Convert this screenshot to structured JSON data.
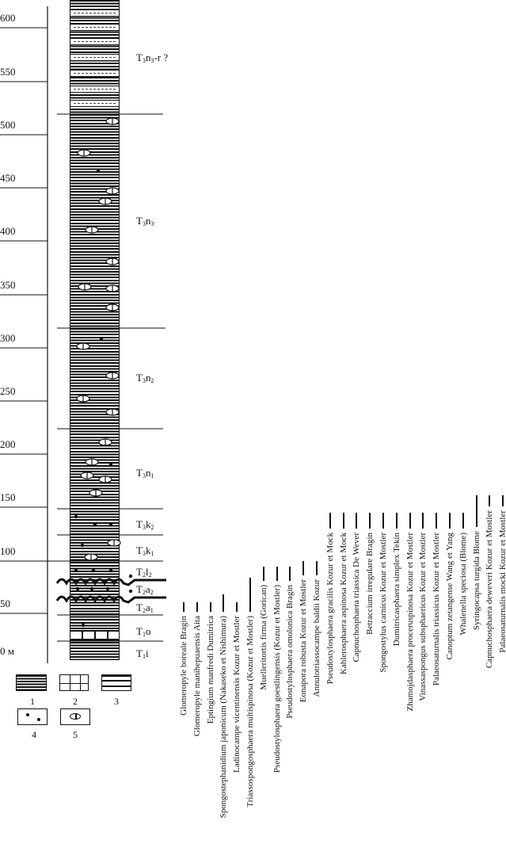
{
  "scale": {
    "ticks": [
      "600",
      "550",
      "500",
      "450",
      "400",
      "350",
      "300",
      "250",
      "200",
      "150",
      "100",
      "50",
      "0 м"
    ]
  },
  "units": [
    {
      "parts": [
        [
          "T",
          ""
        ],
        [
          "3",
          "sub"
        ],
        [
          "n",
          ""
        ],
        [
          "3",
          "sub"
        ],
        [
          "-r ?",
          ""
        ]
      ]
    },
    {
      "parts": [
        [
          "T",
          ""
        ],
        [
          "3",
          "sub"
        ],
        [
          "n",
          ""
        ],
        [
          "3",
          "sub"
        ]
      ]
    },
    {
      "parts": [
        [
          "T",
          ""
        ],
        [
          "3",
          "sub"
        ],
        [
          "n",
          ""
        ],
        [
          "2",
          "sub"
        ]
      ]
    },
    {
      "parts": [
        [
          "T",
          ""
        ],
        [
          "3",
          "sub"
        ],
        [
          "n",
          ""
        ],
        [
          "1",
          "sub"
        ]
      ]
    },
    {
      "parts": [
        [
          "T",
          ""
        ],
        [
          "3",
          "sub"
        ],
        [
          "k",
          ""
        ],
        [
          "2",
          "sub"
        ]
      ]
    },
    {
      "parts": [
        [
          "T",
          ""
        ],
        [
          "3",
          "sub"
        ],
        [
          "k",
          ""
        ],
        [
          "1",
          "sub"
        ]
      ]
    },
    {
      "parts": [
        [
          "T",
          ""
        ],
        [
          "2",
          "sub"
        ],
        [
          "l",
          ""
        ],
        [
          "2",
          "sub"
        ]
      ]
    },
    {
      "parts": [
        [
          "T",
          ""
        ],
        [
          "2",
          "sub"
        ],
        [
          "a",
          ""
        ],
        [
          "2",
          "sub"
        ]
      ]
    },
    {
      "parts": [
        [
          "T",
          ""
        ],
        [
          "2",
          "sub"
        ],
        [
          "a",
          ""
        ],
        [
          "1",
          "sub"
        ]
      ]
    },
    {
      "parts": [
        [
          "T",
          ""
        ],
        [
          "1",
          "sub"
        ],
        [
          "o",
          ""
        ]
      ]
    },
    {
      "parts": [
        [
          "T",
          ""
        ],
        [
          "1",
          "sub"
        ],
        [
          "i",
          ""
        ]
      ]
    }
  ],
  "legend": [
    "1",
    "2",
    "3",
    "4",
    "5"
  ],
  "taxa": [
    "Glomeropyle boreale Bragin",
    "Glomeropyle manihepuaensis Aita",
    "Eptingium manfredi Dumitrica",
    "Spongostephanidium japonicum (Nakaseko et Nishimura)",
    "Ladinocampe vicentinensis Kozur et Mostler",
    "Triassospongosphaera multispinosa (Kozur et Mostler)",
    "Muelleritortis firma (Gorican)",
    "Pseudostylosphaera goestlingensis (Kozur et Mostler)",
    "Pseudostylosphaera omolonica Bragin",
    "Eonapora robusta Kozur et Mostler",
    "Annulotriassocampe baldii Kozur",
    "Pseudostylosphaera gracilis Kozur et Mock",
    "Kahlerosphaera aspinosa Kozur et Mock",
    "Capnuchosphaera triassica De Wever",
    "Betraccium irregulare Bragin",
    "Spongostylus carnicus Kozur et Mostler",
    "Dumitricasphaera simplex Tekin",
    "Zhamojdasphaera proceruspinosa Kozur et Mostler",
    "Vinassaspongus subsphaericus Kozur et Mostler",
    "Palaeosaturnalis triassicus Kozur et Mostler",
    "Canoptum zetangense Wang et Yang",
    "Whalenella speciosa (Blome)",
    "Syringocapsa turgida Blome",
    "Capnuchosphaera deweveri Kozur et Mostler",
    "Palaeosaturnalis mocki Kozur et Mostler"
  ]
}
